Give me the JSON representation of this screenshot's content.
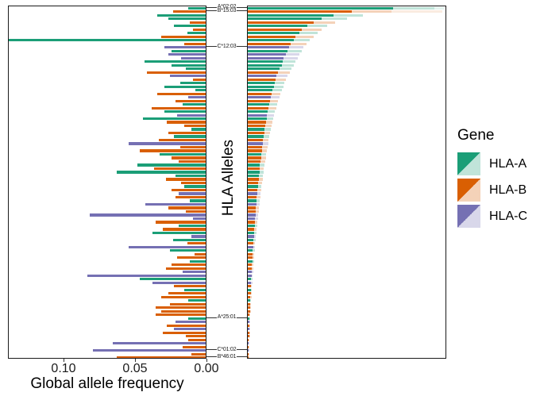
{
  "figure_title": "",
  "left_axis": {
    "title": "Global allele frequency",
    "ticks": [
      "0.10",
      "0.05",
      "0.00"
    ],
    "tick_values": [
      0.1,
      0.05,
      0.0
    ]
  },
  "y_axis": {
    "title": "HLA Alleles"
  },
  "legend": {
    "title": "Gene",
    "entries": [
      {
        "label": "HLA-A",
        "gene": "A",
        "color": "#1B9E77",
        "light_color": "rgba(27,158,119,0.28)"
      },
      {
        "label": "HLA-B",
        "gene": "B",
        "color": "#D95F02",
        "light_color": "rgba(217,95,2,0.28)"
      },
      {
        "label": "HLA-C",
        "gene": "C",
        "color": "#7570B3",
        "light_color": "rgba(117,112,179,0.28)"
      }
    ]
  },
  "chart_data": {
    "type": "bar",
    "orientation": "horizontal",
    "ylabel": "HLA Alleles",
    "n_rows": 99,
    "left_panel": {
      "xlabel": "Global allele frequency",
      "x_ticks": [
        0.1,
        0.05,
        0.0
      ],
      "x_reversed": true,
      "x_range": [
        0,
        0.139
      ],
      "grid": false
    },
    "right_panel": {
      "xlabel": "",
      "x_ticks": [],
      "note": "axis unlabeled in figure; s (solid), t (light) and t2 (faint) are fractions of panel width",
      "grid": false
    },
    "labeled_alleles": [
      {
        "row": 0,
        "label": "A*02:02"
      },
      {
        "row": 1,
        "label": "B*15:03"
      },
      {
        "row": 11,
        "label": "C*12:03"
      },
      {
        "row": 87,
        "label": "A*25:01"
      },
      {
        "row": 96,
        "label": "C*01:02"
      },
      {
        "row": 98,
        "label": "B*46:01"
      }
    ],
    "genes": {
      "A": "HLA-A",
      "B": "HLA-B",
      "C": "HLA-C"
    },
    "colors": {
      "A": "#1B9E77",
      "B": "#D95F02",
      "C": "#7570B3"
    },
    "light_colors": {
      "A": "rgba(27,158,119,0.28)",
      "B": "rgba(217,95,2,0.28)",
      "C": "rgba(117,112,179,0.28)"
    },
    "faint_colors": {
      "A": "rgba(27,158,119,0.12)",
      "B": "rgba(217,95,2,0.12)",
      "C": "rgba(117,112,179,0.12)"
    },
    "rows": [
      {
        "g": "A",
        "f": 0.012,
        "s": 0.73,
        "t": 0.935,
        "t2": 0.985
      },
      {
        "g": "B",
        "f": 0.023,
        "s": 0.52,
        "t": 0.72,
        "t2": 0.975
      },
      {
        "g": "A",
        "f": 0.034,
        "s": 0.43,
        "t": 0.58
      },
      {
        "g": "A",
        "f": 0.026,
        "s": 0.37,
        "t": 0.5
      },
      {
        "g": "B",
        "f": 0.011,
        "s": 0.33,
        "t": 0.44
      },
      {
        "g": "A",
        "f": 0.022,
        "s": 0.3,
        "t": 0.4
      },
      {
        "g": "B",
        "f": 0.009,
        "s": 0.27,
        "t": 0.37
      },
      {
        "g": "A",
        "f": 0.013,
        "s": 0.26,
        "t": 0.35
      },
      {
        "g": "B",
        "f": 0.031,
        "s": 0.24,
        "t": 0.33
      },
      {
        "g": "A",
        "f": 0.139,
        "s": 0.23,
        "t": 0.31
      },
      {
        "g": "B",
        "f": 0.015,
        "s": 0.215,
        "t": 0.295
      },
      {
        "g": "C",
        "f": 0.029,
        "s": 0.205,
        "t": 0.28
      },
      {
        "g": "A",
        "f": 0.024,
        "s": 0.2,
        "t": 0.27
      },
      {
        "g": "C",
        "f": 0.026,
        "s": 0.19,
        "t": 0.26
      },
      {
        "g": "C",
        "f": 0.017,
        "s": 0.18,
        "t": 0.25
      },
      {
        "g": "A",
        "f": 0.043,
        "s": 0.175,
        "t": 0.24
      },
      {
        "g": "A",
        "f": 0.024,
        "s": 0.17,
        "t": 0.23
      },
      {
        "g": "A",
        "f": 0.014,
        "s": 0.16,
        "t": 0.22
      },
      {
        "g": "B",
        "f": 0.041,
        "s": 0.15,
        "t": 0.21
      },
      {
        "g": "C",
        "f": 0.025,
        "s": 0.145,
        "t": 0.2
      },
      {
        "g": "B",
        "f": 0.009,
        "s": 0.14,
        "t": 0.19
      },
      {
        "g": "A",
        "f": 0.018,
        "s": 0.135,
        "t": 0.185
      },
      {
        "g": "A",
        "f": 0.029,
        "s": 0.13,
        "t": 0.18
      },
      {
        "g": "A",
        "f": 0.007,
        "s": 0.125,
        "t": 0.172
      },
      {
        "g": "B",
        "f": 0.034,
        "s": 0.12,
        "t": 0.165
      },
      {
        "g": "C",
        "f": 0.012,
        "s": 0.115,
        "t": 0.158
      },
      {
        "g": "B",
        "f": 0.021,
        "s": 0.11,
        "t": 0.152
      },
      {
        "g": "A",
        "f": 0.016,
        "s": 0.107,
        "t": 0.147
      },
      {
        "g": "B",
        "f": 0.038,
        "s": 0.104,
        "t": 0.142
      },
      {
        "g": "A",
        "f": 0.029,
        "s": 0.1,
        "t": 0.137
      },
      {
        "g": "C",
        "f": 0.02,
        "s": 0.096,
        "t": 0.132
      },
      {
        "g": "A",
        "f": 0.044,
        "s": 0.094,
        "t": 0.128
      },
      {
        "g": "B",
        "f": 0.027,
        "s": 0.09,
        "t": 0.124
      },
      {
        "g": "B",
        "f": 0.015,
        "s": 0.088,
        "t": 0.12
      },
      {
        "g": "A",
        "f": 0.01,
        "s": 0.085,
        "t": 0.116
      },
      {
        "g": "B",
        "f": 0.026,
        "s": 0.082,
        "t": 0.112
      },
      {
        "g": "A",
        "f": 0.022,
        "s": 0.079,
        "t": 0.108
      },
      {
        "g": "B",
        "f": 0.033,
        "s": 0.077,
        "t": 0.105
      },
      {
        "g": "C",
        "f": 0.054,
        "s": 0.074,
        "t": 0.102
      },
      {
        "g": "B",
        "f": 0.018,
        "s": 0.072,
        "t": 0.099
      },
      {
        "g": "B",
        "f": 0.046,
        "s": 0.07,
        "t": 0.096
      },
      {
        "g": "A",
        "f": 0.032,
        "s": 0.068,
        "t": 0.093
      },
      {
        "g": "B",
        "f": 0.024,
        "s": 0.066,
        "t": 0.09
      },
      {
        "g": "B",
        "f": 0.019,
        "s": 0.063,
        "t": 0.087
      },
      {
        "g": "A",
        "f": 0.048,
        "s": 0.061,
        "t": 0.084
      },
      {
        "g": "B",
        "f": 0.036,
        "s": 0.059,
        "t": 0.081
      },
      {
        "g": "A",
        "f": 0.062,
        "s": 0.058,
        "t": 0.079
      },
      {
        "g": "A",
        "f": 0.021,
        "s": 0.055,
        "t": 0.076
      },
      {
        "g": "B",
        "f": 0.028,
        "s": 0.054,
        "t": 0.074
      },
      {
        "g": "B",
        "f": 0.017,
        "s": 0.052,
        "t": 0.071
      },
      {
        "g": "A",
        "f": 0.015,
        "s": 0.05,
        "t": 0.069
      },
      {
        "g": "B",
        "f": 0.024,
        "s": 0.049,
        "t": 0.067
      },
      {
        "g": "C",
        "f": 0.019,
        "s": 0.047,
        "t": 0.064
      },
      {
        "g": "B",
        "f": 0.021,
        "s": 0.045,
        "t": 0.062
      },
      {
        "g": "A",
        "f": 0.011,
        "s": 0.044,
        "t": 0.06
      },
      {
        "g": "C",
        "f": 0.042,
        "s": 0.042,
        "t": 0.058
      },
      {
        "g": "B",
        "f": 0.026,
        "s": 0.041,
        "t": 0.056
      },
      {
        "g": "B",
        "f": 0.014,
        "s": 0.039,
        "t": 0.054
      },
      {
        "g": "C",
        "f": 0.081,
        "s": 0.038,
        "t": 0.052
      },
      {
        "g": "C",
        "f": 0.009,
        "s": 0.037,
        "t": 0.05
      },
      {
        "g": "B",
        "f": 0.035,
        "s": 0.035,
        "t": 0.048
      },
      {
        "g": "A",
        "f": 0.019,
        "s": 0.034,
        "t": 0.046
      },
      {
        "g": "B",
        "f": 0.03,
        "s": 0.032,
        "t": 0.044
      },
      {
        "g": "A",
        "f": 0.037,
        "s": 0.031,
        "t": 0.042
      },
      {
        "g": "C",
        "f": 0.01,
        "s": 0.03,
        "t": 0.041
      },
      {
        "g": "A",
        "f": 0.023,
        "s": 0.028,
        "t": 0.039
      },
      {
        "g": "B",
        "f": 0.013,
        "s": 0.027,
        "t": 0.037
      },
      {
        "g": "C",
        "f": 0.054,
        "s": 0.026,
        "t": 0.036
      },
      {
        "g": "A",
        "f": 0.025,
        "s": 0.025,
        "t": 0.034
      },
      {
        "g": "B",
        "f": 0.008,
        "s": 0.024,
        "t": 0.033
      },
      {
        "g": "B",
        "f": 0.02,
        "s": 0.023,
        "t": 0.031
      },
      {
        "g": "A",
        "f": 0.011,
        "s": 0.022,
        "t": 0.03
      },
      {
        "g": "B",
        "f": 0.024,
        "s": 0.02,
        "t": 0.028
      },
      {
        "g": "B",
        "f": 0.028,
        "s": 0.02,
        "t": 0.027
      },
      {
        "g": "C",
        "f": 0.016,
        "s": 0.019,
        "t": 0.026
      },
      {
        "g": "C",
        "f": 0.083,
        "s": 0.018,
        "t": 0.024
      },
      {
        "g": "A",
        "f": 0.046,
        "s": 0.017,
        "t": 0.023
      },
      {
        "g": "C",
        "f": 0.037,
        "s": 0.016,
        "t": 0.022
      },
      {
        "g": "B",
        "f": 0.022,
        "s": 0.015,
        "t": 0.021
      },
      {
        "g": "A",
        "f": 0.015,
        "s": 0.015,
        "t": 0.02
      },
      {
        "g": "B",
        "f": 0.026,
        "s": 0.014,
        "t": 0.019
      },
      {
        "g": "B",
        "f": 0.031,
        "s": 0.013,
        "t": 0.018
      },
      {
        "g": "A",
        "f": 0.012,
        "s": 0.012,
        "t": 0.017
      },
      {
        "g": "B",
        "f": 0.025,
        "s": 0.012,
        "t": 0.016
      },
      {
        "g": "B",
        "f": 0.035,
        "s": 0.011,
        "t": 0.015
      },
      {
        "g": "B",
        "f": 0.031,
        "s": 0.01,
        "t": 0.014
      },
      {
        "g": "B",
        "f": 0.035,
        "s": 0.0095,
        "t": 0.013
      },
      {
        "g": "A",
        "f": 0.012,
        "s": 0.009,
        "t": 0.012
      },
      {
        "g": "C",
        "f": 0.021,
        "s": 0.008,
        "t": 0.011
      },
      {
        "g": "B",
        "f": 0.027,
        "s": 0.007,
        "t": 0.01
      },
      {
        "g": "C",
        "f": 0.022,
        "s": 0.0066,
        "t": 0.009
      },
      {
        "g": "B",
        "f": 0.03,
        "s": 0.0062,
        "t": 0.0085
      },
      {
        "g": "B",
        "f": 0.014,
        "s": 0.0058,
        "t": 0.008
      },
      {
        "g": "B",
        "f": 0.012,
        "s": 0.005,
        "t": 0.007
      },
      {
        "g": "C",
        "f": 0.065,
        "s": 0.0047,
        "t": 0.0065
      },
      {
        "g": "B",
        "f": 0.016,
        "s": 0.0044,
        "t": 0.006
      },
      {
        "g": "C",
        "f": 0.079,
        "s": 0.004,
        "t": 0.0055
      },
      {
        "g": "B",
        "f": 0.01,
        "s": 0.0037,
        "t": 0.005
      },
      {
        "g": "B",
        "f": 0.062,
        "s": 0.0033,
        "t": 0.0045
      }
    ]
  }
}
